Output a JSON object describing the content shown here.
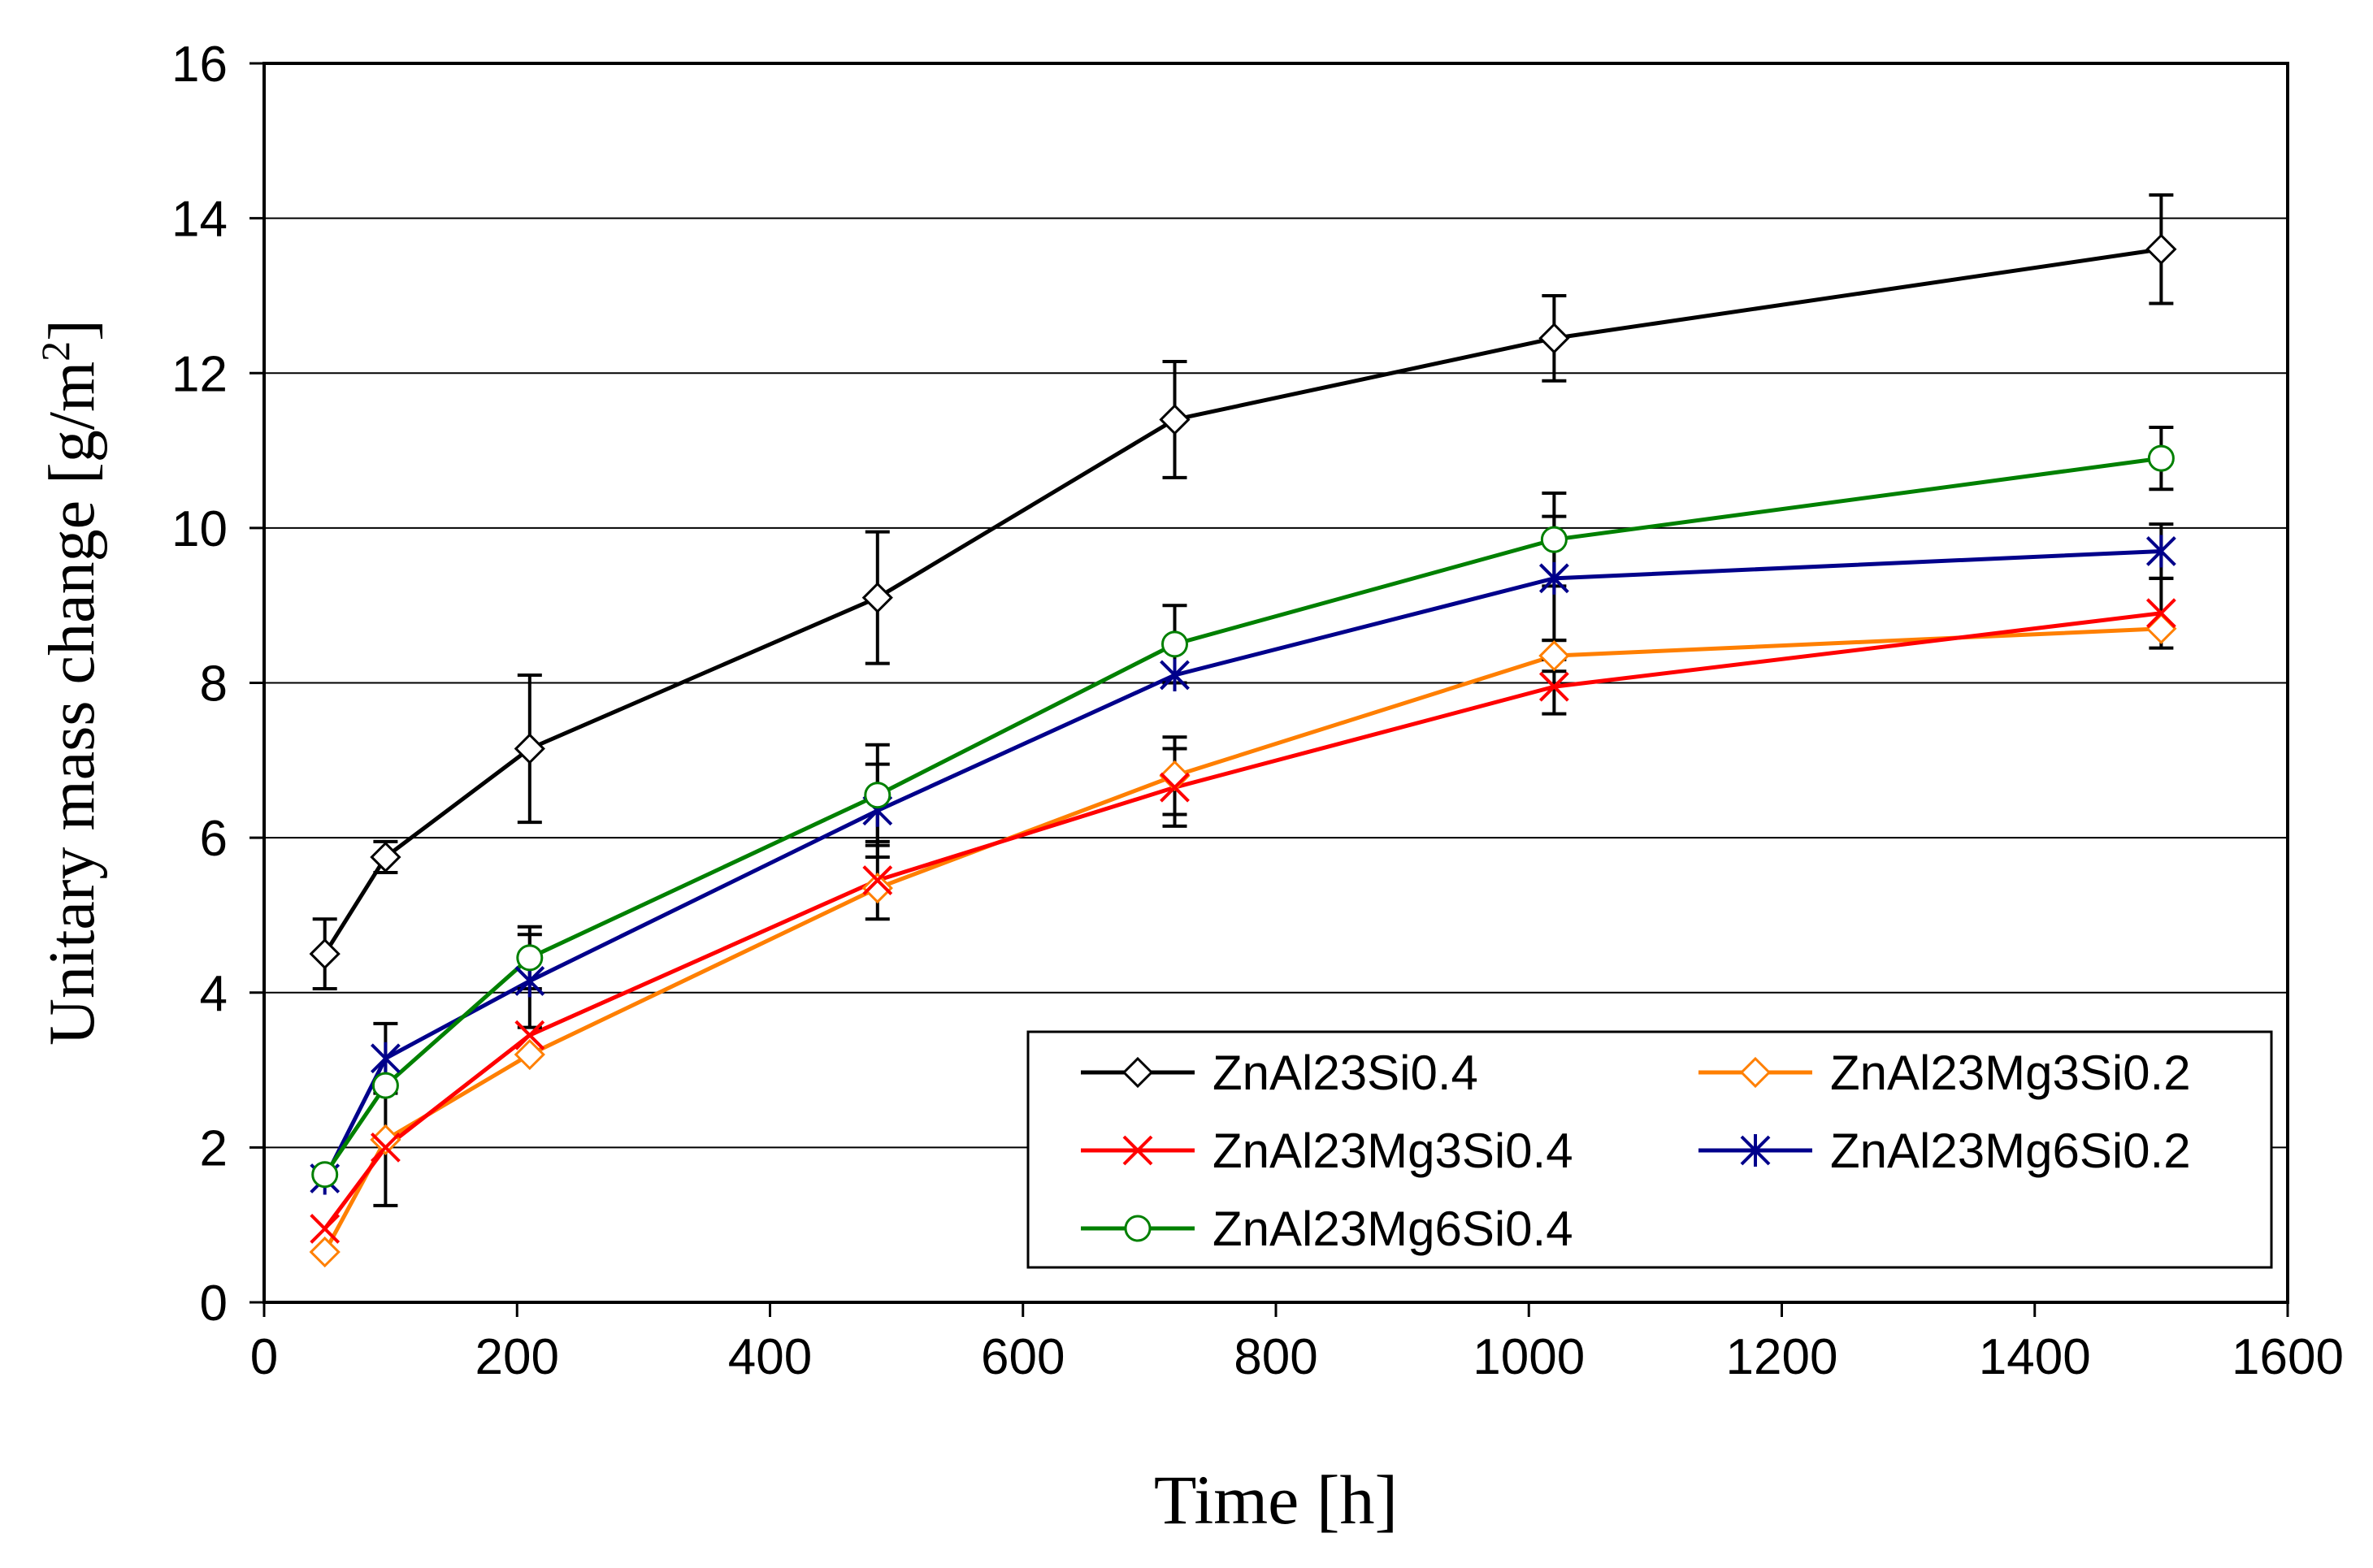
{
  "chart_data": {
    "type": "line",
    "title": "",
    "xlabel": "Time [h]",
    "ylabel_main": "Unitary mass change  [g/m",
    "ylabel_sup": "2",
    "ylabel_close": "]",
    "xlim": [
      0,
      1600
    ],
    "ylim": [
      0,
      16
    ],
    "xticks": [
      0,
      200,
      400,
      600,
      800,
      1000,
      1200,
      1400,
      1600
    ],
    "yticks": [
      0,
      2,
      4,
      6,
      8,
      10,
      12,
      14,
      16
    ],
    "grid": "horizontal",
    "legend_position": "bottom-right",
    "x": [
      48,
      96,
      210,
      485,
      720,
      1020,
      1500
    ],
    "series": [
      {
        "name": "ZnAl23Si0.4",
        "color": "#000000",
        "marker": "diamond",
        "values": [
          4.5,
          5.75,
          7.15,
          9.1,
          11.4,
          12.45,
          13.6
        ],
        "errors": [
          0.45,
          0.2,
          0.95,
          0.85,
          0.75,
          0.55,
          0.7
        ]
      },
      {
        "name": "ZnAl23Mg3Si0.2",
        "color": "#ff7f00",
        "marker": "diamond",
        "values": [
          0.65,
          2.1,
          3.2,
          5.35,
          6.8,
          8.35,
          8.7
        ],
        "errors": [
          0.0,
          0.0,
          0.0,
          0.0,
          0.5,
          0.2,
          0.0
        ]
      },
      {
        "name": "ZnAl23Mg3Si0.4",
        "color": "#ff0000",
        "marker": "x",
        "values": [
          0.95,
          2.0,
          3.45,
          5.45,
          6.65,
          7.95,
          8.9
        ],
        "errors": [
          0.0,
          0.75,
          0.0,
          0.5,
          0.5,
          0.35,
          0.45
        ]
      },
      {
        "name": "ZnAl23Mg6Si0.2",
        "color": "#00008b",
        "marker": "asterisk",
        "values": [
          1.6,
          3.15,
          4.15,
          6.35,
          8.1,
          9.35,
          9.7
        ],
        "errors": [
          0.0,
          0.45,
          0.6,
          0.6,
          0.0,
          0.8,
          0.35
        ]
      },
      {
        "name": "ZnAl23Mg6Si0.4",
        "color": "#008000",
        "marker": "circle",
        "values": [
          1.65,
          2.8,
          4.45,
          6.55,
          8.5,
          9.85,
          10.9
        ],
        "errors": [
          0.0,
          0.0,
          0.4,
          0.65,
          0.5,
          0.6,
          0.4
        ]
      }
    ]
  }
}
